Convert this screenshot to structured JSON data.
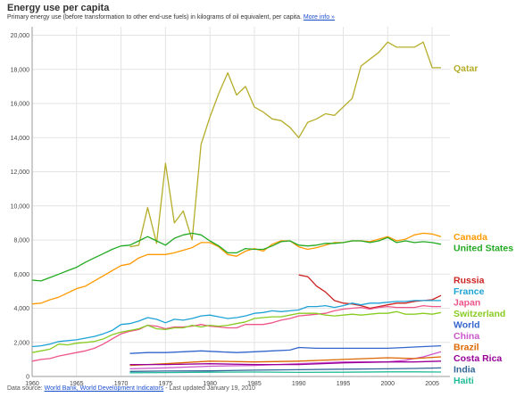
{
  "header": {
    "title": "Energy use per capita",
    "subtitle": "Primary energy use (before transformation to other end-use fuels) in kilograms of oil equivalent, per capita.",
    "more_info": "More info »"
  },
  "footer": {
    "prefix": "Data source: ",
    "source_link": "World Bank, World Development Indicators",
    "suffix": " - Last updated January 19, 2010"
  },
  "chart_data": {
    "type": "line",
    "title": "Energy use per capita",
    "xlabel": "",
    "ylabel": "",
    "xlim": [
      1960,
      2007
    ],
    "ylim": [
      0,
      20500
    ],
    "x_ticks": [
      1960,
      1965,
      1970,
      1975,
      1980,
      1985,
      1990,
      1995,
      2000,
      2005
    ],
    "y_ticks": [
      0,
      2000,
      4000,
      6000,
      8000,
      10000,
      12000,
      14000,
      16000,
      18000,
      20000
    ],
    "y_tick_labels": [
      "0",
      "2,000",
      "4,000",
      "6,000",
      "8,000",
      "10,000",
      "12,000",
      "14,000",
      "16,000",
      "18,000",
      "20,000"
    ],
    "grid": true,
    "legend_placement": "right, labels at line ends",
    "series": [
      {
        "name": "Qatar",
        "color": "#b5ad2a",
        "x": [
          1971,
          1972,
          1973,
          1974,
          1975,
          1976,
          1977,
          1978,
          1979,
          1980,
          1981,
          1982,
          1983,
          1984,
          1985,
          1986,
          1987,
          1988,
          1989,
          1990,
          1991,
          1992,
          1993,
          1994,
          1995,
          1996,
          1997,
          1998,
          1999,
          2000,
          2001,
          2002,
          2003,
          2004,
          2005,
          2006
        ],
        "values": [
          7600,
          7700,
          9900,
          7800,
          12500,
          9000,
          9700,
          8000,
          13600,
          15200,
          16600,
          17800,
          16500,
          17000,
          15800,
          15500,
          15100,
          15000,
          14600,
          14000,
          14900,
          15100,
          15400,
          15300,
          15800,
          16300,
          18200,
          18600,
          19000,
          19600,
          19300,
          19300,
          19300,
          19600,
          18100,
          18100
        ]
      },
      {
        "name": "Canada",
        "color": "#ff9900",
        "x": [
          1960,
          1961,
          1962,
          1963,
          1964,
          1965,
          1966,
          1967,
          1968,
          1969,
          1970,
          1971,
          1972,
          1973,
          1974,
          1975,
          1976,
          1977,
          1978,
          1979,
          1980,
          1981,
          1982,
          1983,
          1984,
          1985,
          1986,
          1987,
          1988,
          1989,
          1990,
          1991,
          1992,
          1993,
          1994,
          1995,
          1996,
          1997,
          1998,
          1999,
          2000,
          2001,
          2002,
          2003,
          2004,
          2005,
          2006
        ],
        "values": [
          4250,
          4300,
          4500,
          4650,
          4900,
          5150,
          5300,
          5600,
          5900,
          6200,
          6500,
          6600,
          6950,
          7150,
          7150,
          7150,
          7250,
          7400,
          7550,
          7850,
          7850,
          7600,
          7150,
          7050,
          7350,
          7500,
          7350,
          7750,
          7950,
          7950,
          7600,
          7450,
          7550,
          7700,
          7850,
          7850,
          7950,
          7950,
          7900,
          8050,
          8200,
          7950,
          8050,
          8300,
          8400,
          8350,
          8200
        ]
      },
      {
        "name": "United States",
        "color": "#22aa22",
        "x": [
          1960,
          1961,
          1962,
          1963,
          1964,
          1965,
          1966,
          1967,
          1968,
          1969,
          1970,
          1971,
          1972,
          1973,
          1974,
          1975,
          1976,
          1977,
          1978,
          1979,
          1980,
          1981,
          1982,
          1983,
          1984,
          1985,
          1986,
          1987,
          1988,
          1989,
          1990,
          1991,
          1992,
          1993,
          1994,
          1995,
          1996,
          1997,
          1998,
          1999,
          2000,
          2001,
          2002,
          2003,
          2004,
          2005,
          2006
        ],
        "values": [
          5650,
          5600,
          5800,
          6000,
          6200,
          6400,
          6700,
          6950,
          7200,
          7450,
          7650,
          7700,
          7950,
          8200,
          7950,
          7700,
          8100,
          8300,
          8400,
          8300,
          7950,
          7650,
          7250,
          7250,
          7500,
          7450,
          7450,
          7650,
          7900,
          7950,
          7700,
          7650,
          7700,
          7800,
          7800,
          7850,
          7950,
          7950,
          7850,
          7950,
          8150,
          7850,
          7950,
          7850,
          7900,
          7850,
          7750
        ]
      },
      {
        "name": "Russia",
        "color": "#cc2222",
        "x": [
          1990,
          1991,
          1992,
          1993,
          1994,
          1995,
          1996,
          1997,
          1998,
          1999,
          2000,
          2001,
          2002,
          2003,
          2004,
          2005,
          2006
        ],
        "values": [
          5950,
          5850,
          5300,
          4950,
          4450,
          4300,
          4250,
          4150,
          4000,
          4100,
          4200,
          4300,
          4300,
          4400,
          4450,
          4500,
          4750
        ]
      },
      {
        "name": "France",
        "color": "#1fa3d6",
        "x": [
          1960,
          1961,
          1962,
          1963,
          1964,
          1965,
          1966,
          1967,
          1968,
          1969,
          1970,
          1971,
          1972,
          1973,
          1974,
          1975,
          1976,
          1977,
          1978,
          1979,
          1980,
          1981,
          1982,
          1983,
          1984,
          1985,
          1986,
          1987,
          1988,
          1989,
          1990,
          1991,
          1992,
          1993,
          1994,
          1995,
          1996,
          1997,
          1998,
          1999,
          2000,
          2001,
          2002,
          2003,
          2004,
          2005,
          2006
        ],
        "values": [
          1750,
          1800,
          1900,
          2050,
          2100,
          2150,
          2250,
          2350,
          2500,
          2700,
          3050,
          3100,
          3250,
          3450,
          3350,
          3150,
          3350,
          3300,
          3400,
          3550,
          3600,
          3500,
          3400,
          3450,
          3550,
          3700,
          3750,
          3850,
          3800,
          3850,
          3900,
          4100,
          4100,
          4150,
          4050,
          4150,
          4300,
          4200,
          4300,
          4300,
          4350,
          4400,
          4400,
          4450,
          4450,
          4450,
          4450
        ]
      },
      {
        "name": "Japan",
        "color": "#ee5588",
        "x": [
          1960,
          1961,
          1962,
          1963,
          1964,
          1965,
          1966,
          1967,
          1968,
          1969,
          1970,
          1971,
          1972,
          1973,
          1974,
          1975,
          1976,
          1977,
          1978,
          1979,
          1980,
          1981,
          1982,
          1983,
          1984,
          1985,
          1986,
          1987,
          1988,
          1989,
          1990,
          1991,
          1992,
          1993,
          1994,
          1995,
          1996,
          1997,
          1998,
          1999,
          2000,
          2001,
          2002,
          2003,
          2004,
          2005,
          2006
        ],
        "values": [
          900,
          1000,
          1050,
          1200,
          1300,
          1400,
          1500,
          1650,
          1900,
          2200,
          2500,
          2650,
          2750,
          3000,
          2950,
          2800,
          2900,
          2900,
          2950,
          3050,
          2950,
          2900,
          2850,
          2850,
          3050,
          3050,
          3050,
          3150,
          3300,
          3400,
          3550,
          3600,
          3650,
          3700,
          3850,
          3950,
          4000,
          4050,
          3950,
          4050,
          4100,
          4050,
          4050,
          4050,
          4150,
          4100,
          4100
        ]
      },
      {
        "name": "Switzerland",
        "color": "#88cc22",
        "x": [
          1960,
          1961,
          1962,
          1963,
          1964,
          1965,
          1966,
          1967,
          1968,
          1969,
          1970,
          1971,
          1972,
          1973,
          1974,
          1975,
          1976,
          1977,
          1978,
          1979,
          1980,
          1981,
          1982,
          1983,
          1984,
          1985,
          1986,
          1987,
          1988,
          1989,
          1990,
          1991,
          1992,
          1993,
          1994,
          1995,
          1996,
          1997,
          1998,
          1999,
          2000,
          2001,
          2002,
          2003,
          2004,
          2005,
          2006
        ],
        "values": [
          1400,
          1500,
          1600,
          1900,
          1850,
          1950,
          2000,
          2050,
          2200,
          2450,
          2600,
          2700,
          2800,
          3000,
          2800,
          2750,
          2850,
          2850,
          3000,
          2900,
          3000,
          2950,
          3000,
          3100,
          3200,
          3400,
          3450,
          3500,
          3500,
          3600,
          3700,
          3700,
          3700,
          3600,
          3550,
          3600,
          3650,
          3600,
          3650,
          3700,
          3700,
          3800,
          3650,
          3650,
          3700,
          3650,
          3750
        ]
      },
      {
        "name": "World",
        "color": "#3366cc",
        "x": [
          1971,
          1973,
          1975,
          1977,
          1979,
          1981,
          1983,
          1985,
          1987,
          1989,
          1990,
          1992,
          1994,
          1996,
          1998,
          2000,
          2002,
          2004,
          2006
        ],
        "values": [
          1350,
          1400,
          1400,
          1450,
          1500,
          1450,
          1400,
          1450,
          1500,
          1550,
          1700,
          1650,
          1650,
          1650,
          1650,
          1650,
          1700,
          1750,
          1800
        ]
      },
      {
        "name": "China",
        "color": "#cc55cc",
        "x": [
          1971,
          1975,
          1980,
          1985,
          1990,
          1995,
          1998,
          2000,
          2002,
          2004,
          2006
        ],
        "values": [
          450,
          500,
          600,
          650,
          750,
          850,
          850,
          850,
          950,
          1150,
          1450
        ]
      },
      {
        "name": "Brazil",
        "color": "#dd6600",
        "x": [
          1971,
          1975,
          1980,
          1985,
          1990,
          1995,
          2000,
          2003,
          2006
        ],
        "values": [
          650,
          750,
          900,
          850,
          900,
          1000,
          1100,
          1050,
          1150
        ]
      },
      {
        "name": "Costa Rica",
        "color": "#990099",
        "x": [
          1971,
          1975,
          1980,
          1985,
          1990,
          1995,
          2000,
          2003,
          2006
        ],
        "values": [
          700,
          700,
          750,
          700,
          700,
          800,
          850,
          850,
          900
        ]
      },
      {
        "name": "India",
        "color": "#336699",
        "x": [
          1971,
          1975,
          1980,
          1985,
          1990,
          1995,
          2000,
          2003,
          2006
        ],
        "values": [
          300,
          320,
          330,
          370,
          400,
          430,
          450,
          470,
          500
        ]
      },
      {
        "name": "Haiti",
        "color": "#22bb99",
        "x": [
          1971,
          1975,
          1980,
          1985,
          1990,
          1995,
          2000,
          2003,
          2006
        ],
        "values": [
          220,
          230,
          250,
          260,
          240,
          250,
          270,
          270,
          260
        ]
      }
    ],
    "label_order_note": ""
  }
}
